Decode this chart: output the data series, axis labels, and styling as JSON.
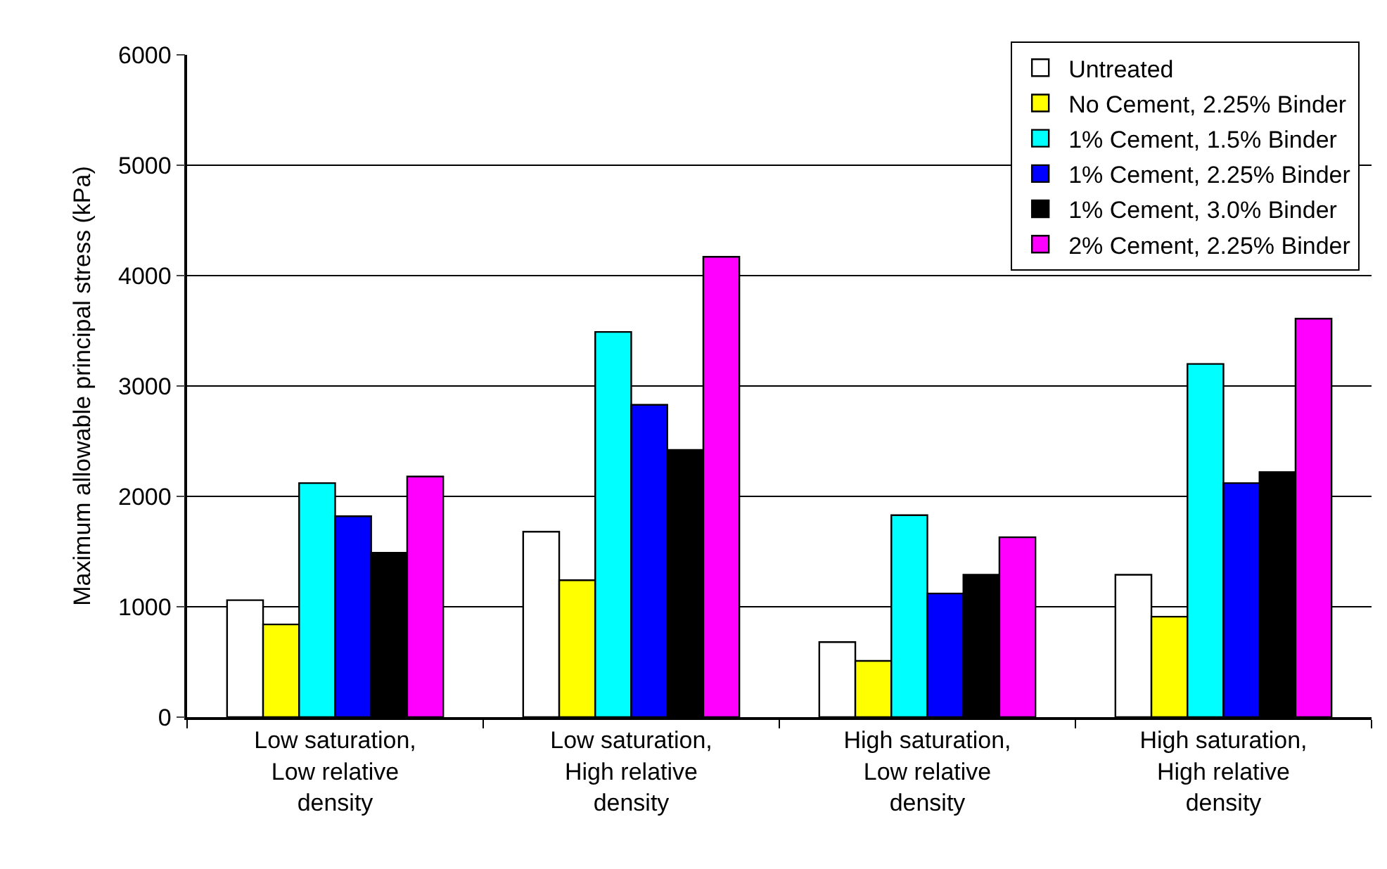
{
  "chart_data": {
    "type": "bar",
    "ylabel": "Maximum allowable principal stress (kPa)",
    "categories": [
      "Low saturation,\nLow relative\ndensity",
      "Low saturation,\nHigh relative\ndensity",
      "High saturation,\nLow relative\ndensity",
      "High saturation,\nHigh relative\ndensity"
    ],
    "series": [
      {
        "name": "Untreated",
        "color": "#ffffff",
        "values": [
          1060,
          1680,
          680,
          1290
        ]
      },
      {
        "name": "No Cement, 2.25% Binder",
        "color": "#ffff00",
        "values": [
          840,
          1240,
          510,
          910
        ]
      },
      {
        "name": "1% Cement, 1.5% Binder",
        "color": "#00ffff",
        "values": [
          2120,
          3490,
          1830,
          3200
        ]
      },
      {
        "name": "1% Cement, 2.25% Binder",
        "color": "#0000ff",
        "values": [
          1820,
          2830,
          1120,
          2120
        ]
      },
      {
        "name": "1% Cement, 3.0% Binder",
        "color": "#000000",
        "values": [
          1490,
          2420,
          1290,
          2220
        ]
      },
      {
        "name": "2% Cement, 2.25% Binder",
        "color": "#ff00ff",
        "values": [
          2180,
          4170,
          1630,
          3610
        ]
      }
    ],
    "ylim": [
      0,
      6000
    ],
    "yticks": [
      0,
      1000,
      2000,
      3000,
      4000,
      5000,
      6000
    ],
    "grid": "y",
    "legend": "top right"
  }
}
